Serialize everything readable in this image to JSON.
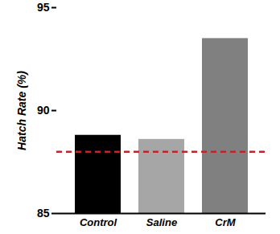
{
  "chart_data": {
    "type": "bar",
    "y_label": "Hatch Rate (%)",
    "categories": [
      "Control",
      "Saline",
      "CrM"
    ],
    "values": [
      88.8,
      88.6,
      93.5
    ],
    "colors": [
      "#000000",
      "#a6a6a6",
      "#808080"
    ],
    "ylim": [
      85,
      95
    ],
    "yticks": [
      85,
      90,
      95
    ],
    "grid": false,
    "reference_line": {
      "value": 88,
      "color": "#e8141c",
      "line_style": "dashed"
    }
  }
}
